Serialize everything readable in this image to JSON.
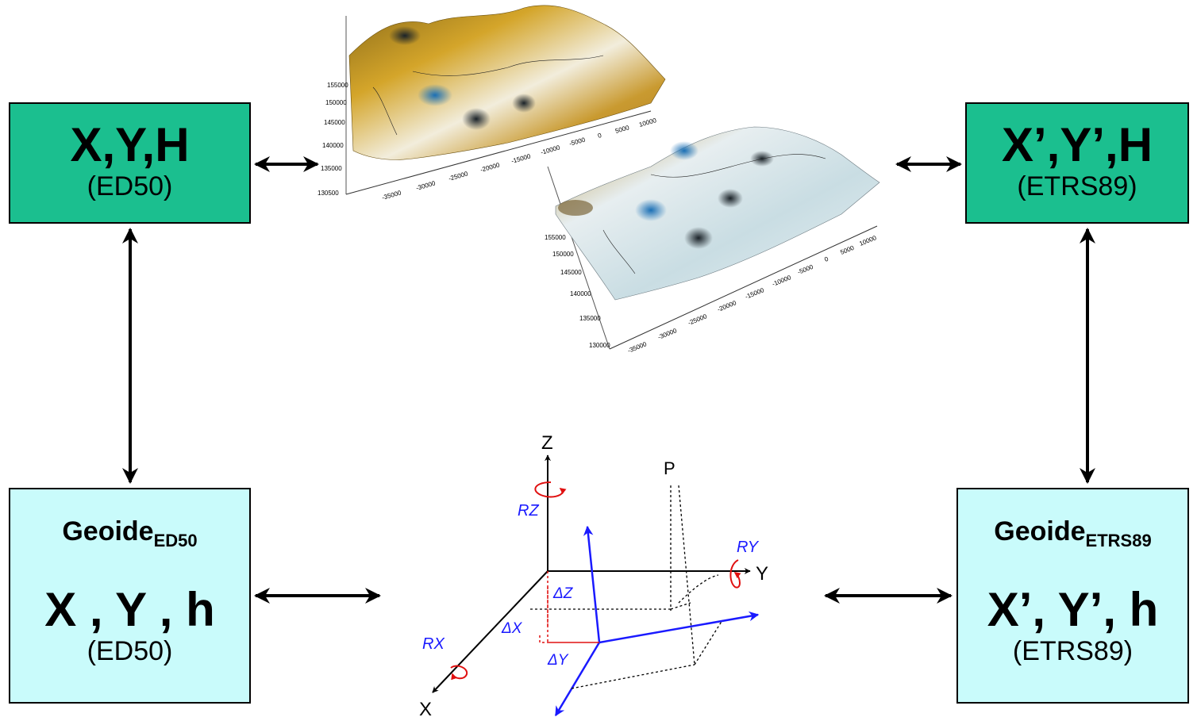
{
  "boxes": {
    "top_left": {
      "title": "X,Y,H",
      "subtitle": "(ED50)"
    },
    "top_right": {
      "title": "X’,Y’,H",
      "subtitle": "(ETRS89)"
    },
    "bottom_left": {
      "geoide": "Geoide",
      "geoide_sub": "ED50",
      "title": "X , Y , h",
      "subtitle": "(ED50)"
    },
    "bottom_right": {
      "geoide": "Geoide",
      "geoide_sub": "ETRS89",
      "title": "X’, Y’, h",
      "subtitle": "(ETRS89)"
    }
  },
  "surface_plot_1": {
    "y_ticks": [
      "130500",
      "135000",
      "140000",
      "145000",
      "150000",
      "155000"
    ],
    "x_ticks": [
      "-35000",
      "-30000",
      "-25000",
      "-20000",
      "-15000",
      "-10000",
      "-5000",
      "0",
      "5000",
      "10000"
    ]
  },
  "surface_plot_2": {
    "y_ticks": [
      "130000",
      "135000",
      "140000",
      "145000",
      "150000",
      "155000"
    ],
    "x_ticks": [
      "-35000",
      "-30000",
      "-25000",
      "-20000",
      "-15000",
      "-10000",
      "-5000",
      "0",
      "5000",
      "10000"
    ]
  },
  "axes_diagram": {
    "z": "Z",
    "y": "Y",
    "x": "X",
    "p": "P",
    "rz": "RZ",
    "ry": "RY",
    "rx": "RX",
    "dz": "ΔZ",
    "dx": "ΔX",
    "dy": "ΔY"
  },
  "colors": {
    "green_box": "#1bbf8f",
    "cyan_box": "#c9fbfb",
    "shift_axes": "#1a1aff",
    "rotation": "#e01010"
  }
}
